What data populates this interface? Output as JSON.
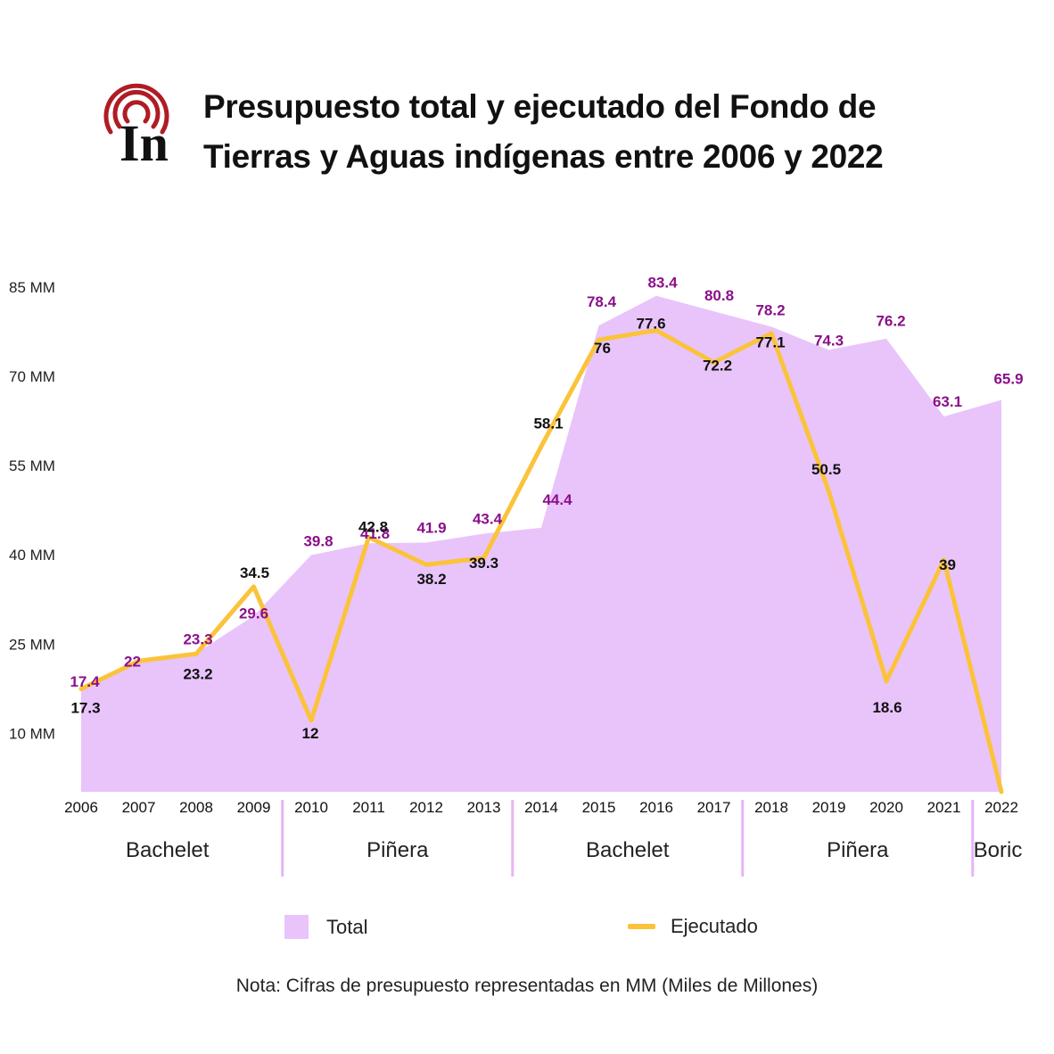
{
  "title": {
    "line1": "Presupuesto total y ejecutado del Fondo de",
    "line2": "Tierras y Aguas indígenas entre 2006 y 2022"
  },
  "logo": {
    "text": "In",
    "icon": "radio-waves-logo"
  },
  "note": "Nota: Cifras de presupuesto representadas en MM (Miles de Millones)",
  "legend": {
    "total_label": "Total",
    "ejecutado_label": "Ejecutado"
  },
  "colors": {
    "total_fill": "#e8c4fb",
    "total_label": "#8b0f8b",
    "ejecutado_line": "#fbc33a",
    "ejecutado_label": "#111111",
    "divider": "#e8b4f5",
    "logo": "#b01c24"
  },
  "chart_data": {
    "type": "area",
    "x": [
      "2006",
      "2007",
      "2008",
      "2009",
      "2010",
      "2011",
      "2012",
      "2013",
      "2014",
      "2015",
      "2016",
      "2017",
      "2018",
      "2019",
      "2020",
      "2021",
      "2022"
    ],
    "y_ticks": [
      {
        "value": 10,
        "label": "10 MM"
      },
      {
        "value": 25,
        "label": "25 MM"
      },
      {
        "value": 40,
        "label": "40 MM"
      },
      {
        "value": 55,
        "label": "55 MM"
      },
      {
        "value": 70,
        "label": "70 MM"
      },
      {
        "value": 85,
        "label": "85 MM"
      }
    ],
    "grid": false,
    "series": [
      {
        "name": "Total",
        "type": "area",
        "values": [
          17.4,
          22,
          23.3,
          29.6,
          39.8,
          41.8,
          41.9,
          43.4,
          44.4,
          78.4,
          83.4,
          80.8,
          78.2,
          74.3,
          76.2,
          63.1,
          65.9
        ],
        "labels": [
          "17.4",
          "22",
          "23.3",
          "29.6",
          "39.8",
          "41.8",
          "41.9",
          "43.4",
          "44.4",
          "78.4",
          "83.4",
          "80.8",
          "78.2",
          "74.3",
          "76.2",
          "63.1",
          "65.9"
        ]
      },
      {
        "name": "Ejecutado",
        "type": "line",
        "values": [
          17.3,
          22,
          23.2,
          34.5,
          12,
          42.8,
          38.2,
          39.3,
          58.1,
          76,
          77.6,
          72.2,
          77.1,
          50.5,
          18.6,
          39,
          0
        ],
        "labels": [
          "17.3",
          "",
          "23.2",
          "34.5",
          "12",
          "42.8",
          "38.2",
          "39.3",
          "58.1",
          "76",
          "77.6",
          "72.2",
          "77.1",
          "50.5",
          "18.6",
          "39",
          ""
        ]
      }
    ],
    "periods": [
      {
        "name": "Bachelet",
        "from": "2006",
        "to": "2009"
      },
      {
        "name": "Piñera",
        "from": "2010",
        "to": "2013"
      },
      {
        "name": "Bachelet",
        "from": "2014",
        "to": "2017"
      },
      {
        "name": "Piñera",
        "from": "2018",
        "to": "2021"
      },
      {
        "name": "Boric",
        "from": "2022",
        "to": "2022"
      }
    ],
    "legend_position": "bottom"
  }
}
